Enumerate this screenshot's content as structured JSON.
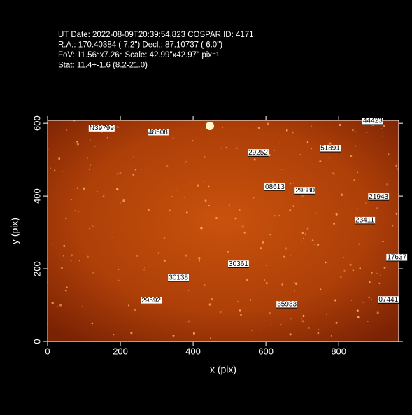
{
  "chart_data": {
    "type": "image",
    "header_lines": [
      "UT Date: 2022-08-09T20:39:54.823  COSPAR ID: 4171",
      "R.A.:  170.40384 ( 7.2\") Decl.:  87.10737 ( 6.0\")",
      "FoV: 11.56°x7.26° Scale: 42.99\"x42.97\" pix⁻¹",
      "Stat:  11.4+-1.6 (8.2-21.0)"
    ],
    "xlabel": "x (pix)",
    "ylabel": "y (pix)",
    "xlim": [
      0,
      965
    ],
    "ylim": [
      0,
      608
    ],
    "xticks": [
      0,
      200,
      400,
      600,
      800
    ],
    "yticks": [
      0,
      200,
      400,
      600
    ],
    "objects": [
      {
        "label": "N39799",
        "x": 113,
        "y": 586
      },
      {
        "label": "48508",
        "x": 275,
        "y": 575
      },
      {
        "label": "44423",
        "x": 865,
        "y": 606
      },
      {
        "label": "29252",
        "x": 550,
        "y": 519
      },
      {
        "label": "51891",
        "x": 748,
        "y": 531
      },
      {
        "label": "08613",
        "x": 596,
        "y": 425
      },
      {
        "label": "29880",
        "x": 679,
        "y": 415
      },
      {
        "label": "21943",
        "x": 881,
        "y": 398
      },
      {
        "label": "23411",
        "x": 844,
        "y": 333
      },
      {
        "label": "30361",
        "x": 496,
        "y": 213
      },
      {
        "label": "17637",
        "x": 931,
        "y": 231
      },
      {
        "label": "30138",
        "x": 331,
        "y": 175
      },
      {
        "label": "29592",
        "x": 256,
        "y": 113
      },
      {
        "label": "35933",
        "x": 629,
        "y": 102
      },
      {
        "label": "07441",
        "x": 908,
        "y": 115
      }
    ]
  }
}
